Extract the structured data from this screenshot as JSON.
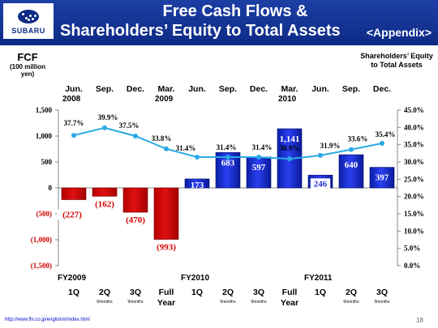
{
  "header": {
    "logo_text": "SUBARU",
    "title_line1": "Free Cash Flows &",
    "title_line2": "Shareholders’ Equity to Total Assets",
    "appendix": "<Appendix>"
  },
  "left_axis": {
    "title": "FCF",
    "unit": "(100 million yen)",
    "ticks": [
      "1,500",
      "1,000",
      "500",
      "0",
      "(500)",
      "(1,000)",
      "(1,500)"
    ]
  },
  "right_axis": {
    "title": "Shareholders’ Equity to Total Assets",
    "ticks": [
      "45.0%",
      "40.0%",
      "35.0%",
      "30.0%",
      "25.0%",
      "20.0%",
      "15.0%",
      "10.0%",
      "5.0%",
      "0.0%"
    ]
  },
  "date_labels": [
    {
      "month": "Jun.",
      "year": "2008"
    },
    {
      "month": "Sep.",
      "year": ""
    },
    {
      "month": "Dec.",
      "year": ""
    },
    {
      "month": "Mar.",
      "year": "2009"
    },
    {
      "month": "Jun.",
      "year": ""
    },
    {
      "month": "Sep.",
      "year": ""
    },
    {
      "month": "Dec.",
      "year": ""
    },
    {
      "month": "Mar.",
      "year": "2010"
    },
    {
      "month": "Jun.",
      "year": ""
    },
    {
      "month": "Sep.",
      "year": ""
    },
    {
      "month": "Dec.",
      "year": ""
    }
  ],
  "fiscal_years": [
    "FY2009",
    "FY2010",
    "FY2011"
  ],
  "quarter_labels": [
    {
      "label": "1Q",
      "sub": ""
    },
    {
      "label": "2Q",
      "sub": "6months"
    },
    {
      "label": "3Q",
      "sub": "9months"
    },
    {
      "label": "Full Year",
      "sub": ""
    },
    {
      "label": "1Q",
      "sub": ""
    },
    {
      "label": "2Q",
      "sub": "6months"
    },
    {
      "label": "3Q",
      "sub": "9months"
    },
    {
      "label": "Full Year",
      "sub": ""
    },
    {
      "label": "1Q",
      "sub": ""
    },
    {
      "label": "2Q",
      "sub": "6months"
    },
    {
      "label": "3Q",
      "sub": "9months"
    }
  ],
  "chart_data": {
    "type": "bar",
    "categories": [
      "Jun. 2008",
      "Sep.",
      "Dec.",
      "Mar. 2009",
      "Jun.",
      "Sep.",
      "Dec.",
      "Mar. 2010",
      "Jun.",
      "Sep.",
      "Dec."
    ],
    "series": [
      {
        "values": [
          -227,
          -162,
          -470,
          -993,
          173,
          683,
          597,
          1141,
          246,
          640,
          397
        ],
        "labels": [
          "(227)",
          "(162)",
          "(470)",
          "(993)",
          "173",
          "683",
          "597",
          "1,141",
          "246",
          "640",
          "397"
        ]
      },
      {
        "values": [
          37.7,
          39.9,
          37.5,
          33.8,
          31.4,
          31.4,
          31.4,
          30.9,
          31.9,
          33.6,
          35.4
        ],
        "labels": [
          "37.7%",
          "39.9%",
          "37.5%",
          "33.8%",
          "31.4%",
          "31.4%",
          "31.4%",
          "30.9%",
          "31.9%",
          "33.6%",
          "35.4%"
        ]
      }
    ],
    "ylim": [
      -1500,
      1500
    ],
    "y2lim": [
      0,
      45
    ],
    "grid": false
  },
  "colors": {
    "negative": "#d40000",
    "positive": "#1e2fd0",
    "line": "#2aa9e6",
    "header": "#0e2a86"
  },
  "footer": {
    "url": "http://www.fhi.co.jp/english/ir/index.html",
    "page": "18"
  }
}
